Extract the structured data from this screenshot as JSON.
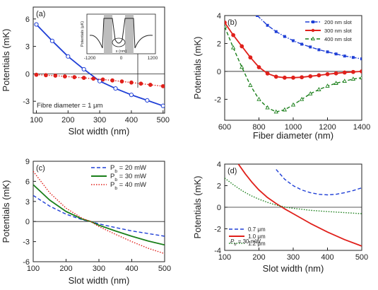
{
  "chart_data": [
    {
      "panel_label": "(a)",
      "type": "line",
      "xlabel": "Slot width",
      "xlabel_unit": "(nm)",
      "ylabel": "Potentials",
      "ylabel_unit": "(mK)",
      "xlim": [
        90,
        505
      ],
      "ylim": [
        -4.3,
        7.3
      ],
      "xticks": [
        100,
        200,
        300,
        400,
        500
      ],
      "yticks": [
        -3,
        0,
        3,
        6
      ],
      "annotation": "Fibre diameter = 1 μm",
      "series": [
        {
          "name": "",
          "color": "#1f3fd6",
          "style": "solid",
          "marker": "open-circle",
          "x": [
            100,
            150,
            200,
            250,
            300,
            350,
            400,
            450,
            500
          ],
          "y": [
            5.4,
            3.6,
            1.9,
            0.5,
            -0.8,
            -1.6,
            -2.3,
            -2.9,
            -3.5
          ]
        },
        {
          "name": "",
          "color": "#e0201b",
          "style": "dotted",
          "marker": "filled-circle",
          "x": [
            100,
            130,
            160,
            190,
            220,
            250,
            280,
            310,
            340,
            370,
            400,
            430,
            460,
            500
          ],
          "y": [
            -0.1,
            -0.15,
            -0.2,
            -0.28,
            -0.36,
            -0.44,
            -0.53,
            -0.62,
            -0.72,
            -0.83,
            -0.95,
            -1.07,
            -1.2,
            -1.35
          ]
        }
      ],
      "inset": {
        "ylabel": "Potentials (μK)",
        "xlabel": "x (nm)",
        "xticks": [
          "-1200",
          "0",
          "1200"
        ]
      }
    },
    {
      "panel_label": "(b)",
      "type": "line",
      "xlabel": "Fiber diameter",
      "xlabel_unit": "(nm)",
      "ylabel": "Potentials",
      "ylabel_unit": "(mK)",
      "xlim": [
        600,
        1400
      ],
      "ylim": [
        -3.5,
        4.0
      ],
      "xticks": [
        600,
        800,
        1000,
        1200,
        1400
      ],
      "yticks": [
        -2,
        0,
        2,
        4
      ],
      "legend": "top-right",
      "series": [
        {
          "name": "200 nm slot",
          "color": "#1f3fd6",
          "style": "dash-dot",
          "marker": "filled-square",
          "x": [
            790,
            850,
            900,
            950,
            1000,
            1050,
            1100,
            1150,
            1200,
            1250,
            1300,
            1350,
            1400
          ],
          "y": [
            4.0,
            3.3,
            2.85,
            2.5,
            2.2,
            1.95,
            1.75,
            1.55,
            1.4,
            1.25,
            1.1,
            1.0,
            0.9
          ]
        },
        {
          "name": "300 nm slot",
          "color": "#e0201b",
          "style": "solid",
          "marker": "filled-circle",
          "x": [
            600,
            650,
            700,
            750,
            800,
            850,
            900,
            950,
            1000,
            1050,
            1100,
            1150,
            1200,
            1250,
            1300,
            1350,
            1400
          ],
          "y": [
            3.5,
            2.6,
            1.8,
            1.0,
            0.3,
            -0.15,
            -0.38,
            -0.45,
            -0.45,
            -0.42,
            -0.35,
            -0.28,
            -0.2,
            -0.14,
            -0.08,
            -0.04,
            0.0
          ]
        },
        {
          "name": "400 nm slot",
          "color": "#1a7f1a",
          "style": "dashed",
          "marker": "open-triangle",
          "x": [
            600,
            650,
            700,
            750,
            800,
            850,
            900,
            950,
            1000,
            1050,
            1100,
            1150,
            1200,
            1250,
            1300,
            1350,
            1400
          ],
          "y": [
            3.2,
            1.7,
            0.3,
            -1.0,
            -2.0,
            -2.6,
            -2.9,
            -2.75,
            -2.4,
            -2.0,
            -1.6,
            -1.3,
            -1.05,
            -0.85,
            -0.7,
            -0.55,
            -0.45
          ]
        }
      ]
    },
    {
      "panel_label": "(c)",
      "type": "line",
      "xlabel": "Slot width",
      "xlabel_unit": "(nm)",
      "ylabel": "Potentials",
      "ylabel_unit": "(mK)",
      "xlim": [
        100,
        500
      ],
      "ylim": [
        -6,
        9
      ],
      "xticks": [
        100,
        200,
        300,
        400,
        500
      ],
      "yticks": [
        -6,
        -3,
        0,
        3,
        6,
        9
      ],
      "legend": "top-right",
      "series": [
        {
          "name": "P_b = 20 mW",
          "color": "#1f3fd6",
          "style": "dashed",
          "x": [
            100,
            150,
            200,
            250,
            275,
            300,
            350,
            400,
            450,
            500
          ],
          "y": [
            3.9,
            2.3,
            1.1,
            0.25,
            0.0,
            -0.35,
            -0.9,
            -1.4,
            -1.8,
            -2.2
          ]
        },
        {
          "name": "P_b = 30 mW",
          "color": "#1a7f1a",
          "style": "solid",
          "x": [
            100,
            150,
            200,
            250,
            275,
            300,
            350,
            400,
            450,
            500
          ],
          "y": [
            5.5,
            3.2,
            1.5,
            0.35,
            0.0,
            -0.55,
            -1.4,
            -2.2,
            -2.9,
            -3.5
          ]
        },
        {
          "name": "P_b = 40 mW",
          "color": "#e0201b",
          "style": "dotted",
          "x": [
            100,
            150,
            200,
            250,
            275,
            300,
            350,
            400,
            450,
            500
          ],
          "y": [
            7.5,
            4.3,
            2.0,
            0.45,
            0.0,
            -0.75,
            -1.9,
            -3.0,
            -4.0,
            -4.8
          ]
        }
      ]
    },
    {
      "panel_label": "(d)",
      "type": "line",
      "xlabel": "Slot width",
      "xlabel_unit": "(nm)",
      "ylabel": "Potentials",
      "ylabel_unit": "(mK)",
      "xlim": [
        100,
        500
      ],
      "ylim": [
        -4.0,
        4.0
      ],
      "xticks": [
        100,
        200,
        300,
        400,
        500
      ],
      "yticks": [
        -4,
        -2,
        0,
        2,
        4
      ],
      "annotation": "P_b = 30 mW",
      "legend": "bottom-left",
      "series": [
        {
          "name": "0.7 μm",
          "color": "#1f3fd6",
          "style": "dashed",
          "x": [
            250,
            275,
            300,
            325,
            350,
            375,
            400,
            425,
            450,
            475,
            500
          ],
          "y": [
            3.5,
            2.6,
            2.0,
            1.6,
            1.35,
            1.2,
            1.15,
            1.2,
            1.35,
            1.55,
            1.8
          ]
        },
        {
          "name": "1.0 μm",
          "color": "#e0201b",
          "style": "solid",
          "x": [
            140,
            160,
            180,
            200,
            225,
            250,
            275,
            300,
            350,
            400,
            450,
            500
          ],
          "y": [
            4.0,
            3.1,
            2.3,
            1.6,
            0.9,
            0.35,
            -0.15,
            -0.6,
            -1.5,
            -2.3,
            -3.0,
            -3.6
          ]
        },
        {
          "name": "1.2 μm",
          "color": "#1a7f1a",
          "style": "dotted",
          "x": [
            100,
            125,
            150,
            175,
            200,
            225,
            250,
            275,
            300,
            350,
            400,
            450,
            500
          ],
          "y": [
            2.7,
            2.1,
            1.55,
            1.1,
            0.75,
            0.45,
            0.2,
            0.02,
            -0.1,
            -0.28,
            -0.4,
            -0.5,
            -0.6
          ]
        }
      ]
    }
  ]
}
